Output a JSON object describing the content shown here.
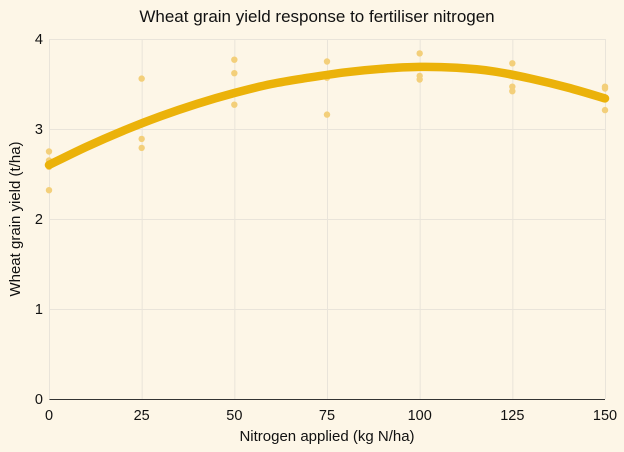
{
  "chart_data": {
    "type": "scatter",
    "title": "Wheat grain yield response to fertiliser nitrogen",
    "xlabel": "Nitrogen applied (kg N/ha)",
    "ylabel": "Wheat grain yield (t/ha)",
    "xlim": [
      0,
      150
    ],
    "ylim": [
      0,
      4
    ],
    "x_ticks": [
      0,
      25,
      50,
      75,
      100,
      125,
      150
    ],
    "y_ticks": [
      0,
      1,
      2,
      3,
      4
    ],
    "grid": true,
    "colors": {
      "points": "#f3cf7a",
      "curve": "#ebb20a"
    },
    "points": [
      {
        "x": 0,
        "y": 2.75
      },
      {
        "x": 0,
        "y": 2.65
      },
      {
        "x": 0,
        "y": 2.58
      },
      {
        "x": 0,
        "y": 2.32
      },
      {
        "x": 25,
        "y": 3.56
      },
      {
        "x": 25,
        "y": 2.89
      },
      {
        "x": 25,
        "y": 2.79
      },
      {
        "x": 50,
        "y": 3.77
      },
      {
        "x": 50,
        "y": 3.62
      },
      {
        "x": 50,
        "y": 3.27
      },
      {
        "x": 75,
        "y": 3.75
      },
      {
        "x": 75,
        "y": 3.57
      },
      {
        "x": 75,
        "y": 3.16
      },
      {
        "x": 100,
        "y": 3.84
      },
      {
        "x": 100,
        "y": 3.59
      },
      {
        "x": 100,
        "y": 3.55
      },
      {
        "x": 125,
        "y": 3.73
      },
      {
        "x": 125,
        "y": 3.47
      },
      {
        "x": 125,
        "y": 3.42
      },
      {
        "x": 150,
        "y": 3.47
      },
      {
        "x": 150,
        "y": 3.45
      },
      {
        "x": 150,
        "y": 3.21
      }
    ],
    "fitted_curve": {
      "x": [
        0,
        10,
        20,
        30,
        40,
        50,
        60,
        70,
        80,
        90,
        100,
        110,
        120,
        130,
        140,
        150
      ],
      "y": [
        2.6,
        2.8,
        2.98,
        3.14,
        3.28,
        3.4,
        3.5,
        3.57,
        3.63,
        3.67,
        3.69,
        3.68,
        3.64,
        3.56,
        3.46,
        3.34
      ]
    }
  }
}
